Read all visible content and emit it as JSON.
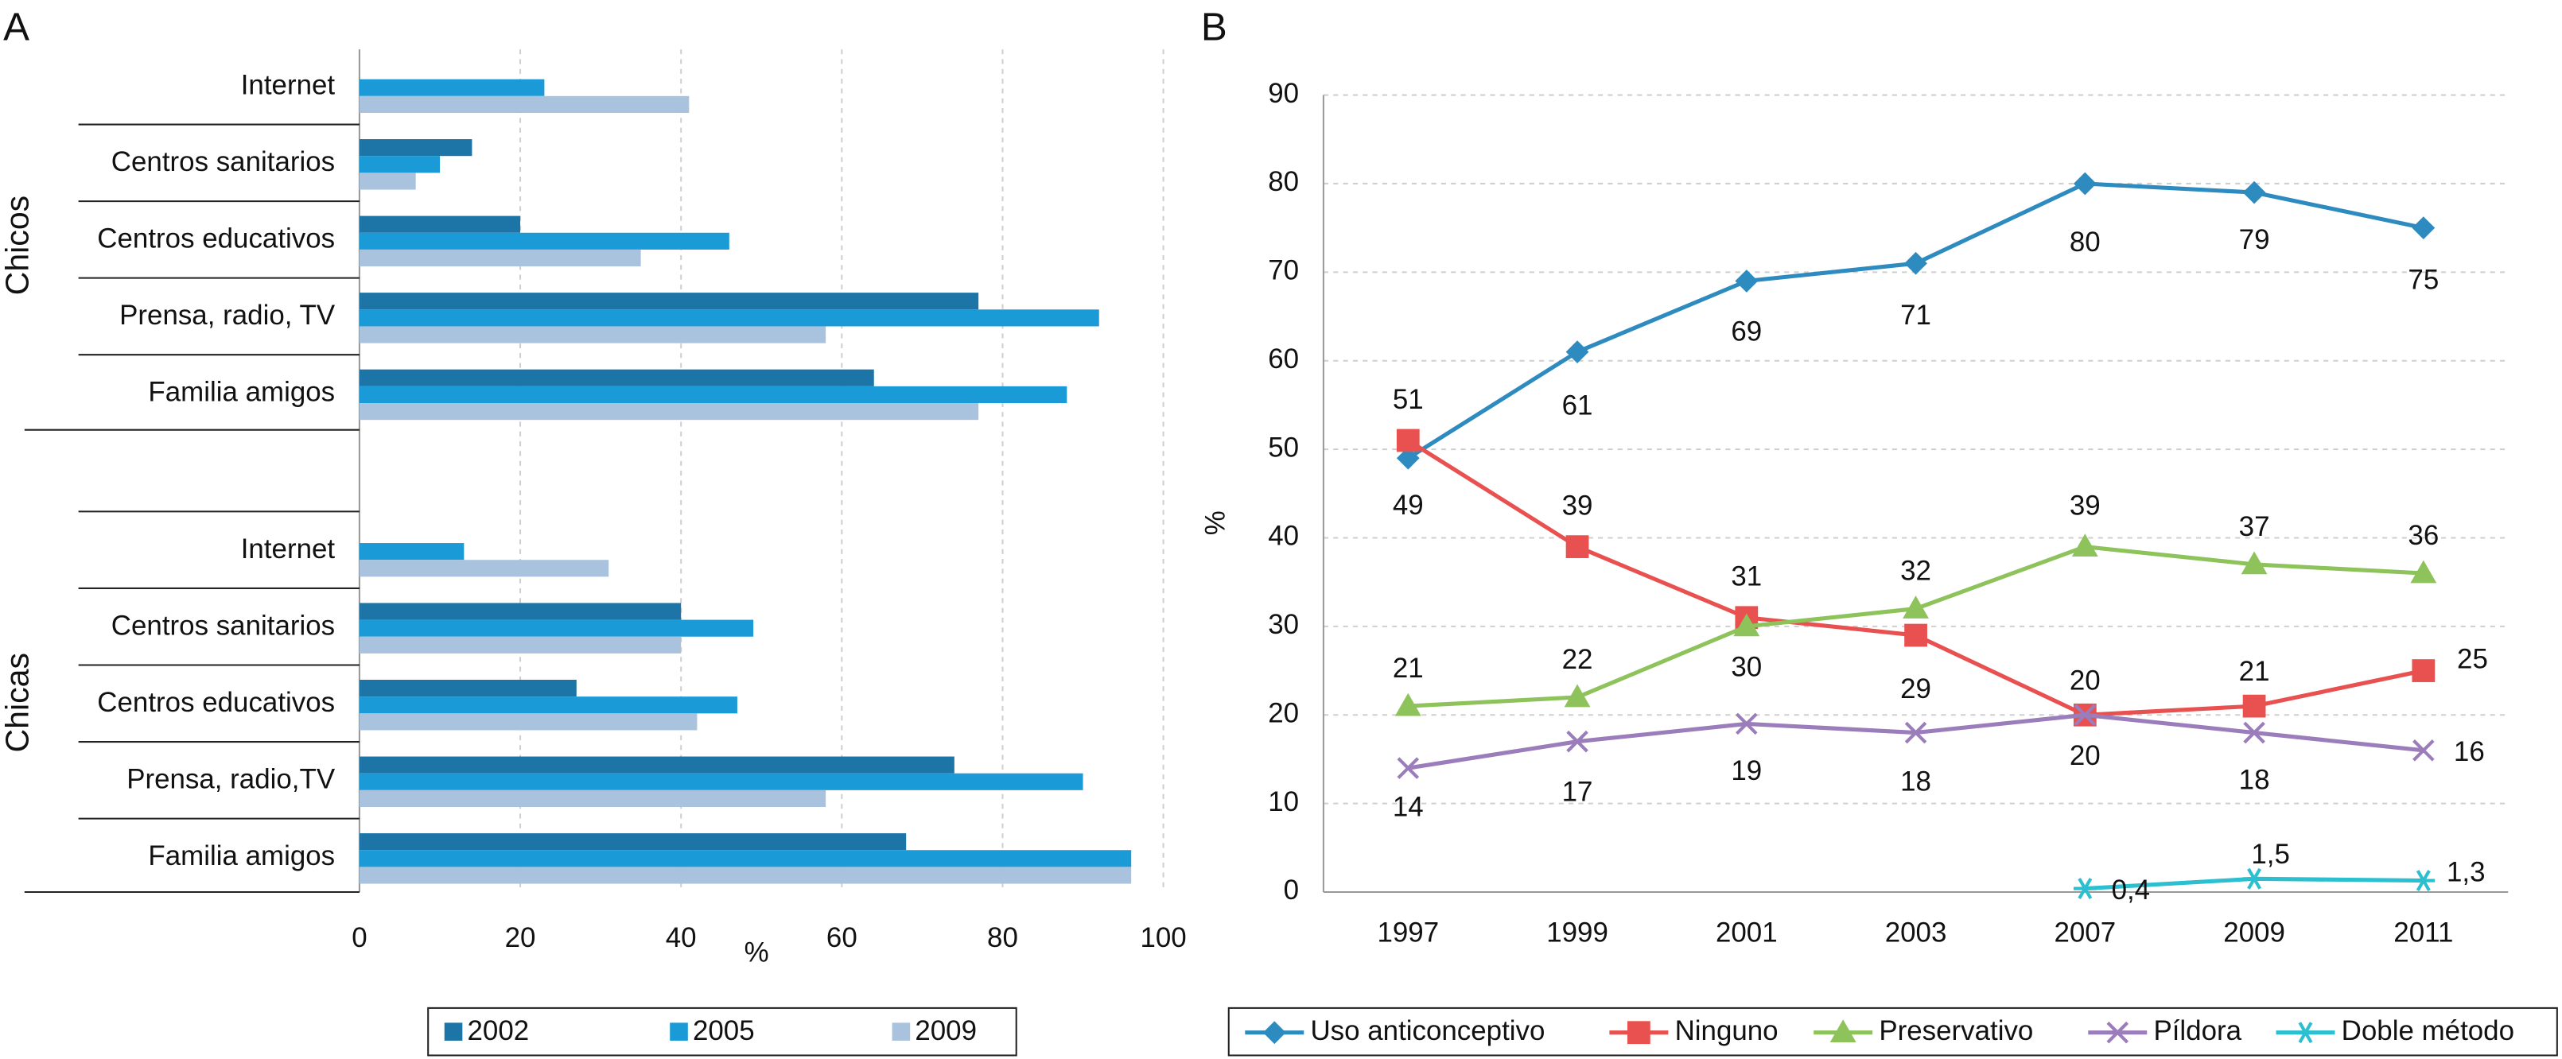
{
  "chart_data": [
    {
      "type": "hbar",
      "panel_label": "A",
      "categories": [
        "Internet",
        "Centros sanitarios",
        "Centros educativos",
        "Prensa, radio, TV",
        "Familia amigos",
        "Internet",
        "Centros sanitarios",
        "Centros educativos",
        "Prensa, radio,TV",
        "Familia amigos"
      ],
      "group_labels": [
        "Chicos",
        "Chicas"
      ],
      "series": [
        {
          "name": "2002",
          "color": "#1d74a6",
          "values": [
            null,
            14,
            20,
            77,
            64,
            null,
            40,
            27,
            74,
            68
          ]
        },
        {
          "name": "2005",
          "color": "#1a9ad6",
          "values": [
            23,
            10,
            46,
            92,
            88,
            13,
            49,
            47,
            90,
            96
          ]
        },
        {
          "name": "2009",
          "color": "#a9c3de",
          "values": [
            41,
            7,
            35,
            58,
            77,
            31,
            40,
            42,
            58,
            96
          ]
        }
      ],
      "xlim": [
        0,
        100
      ],
      "xticks": [
        0,
        20,
        40,
        60,
        80,
        100
      ],
      "xlabel": "%",
      "grid": true
    },
    {
      "type": "line",
      "panel_label": "B",
      "categories": [
        "1997",
        "1999",
        "2001",
        "2003",
        "2007",
        "2009",
        "2011"
      ],
      "ylabel": "%",
      "series": [
        {
          "name": "Uso anticonceptivo",
          "color": "#2e8bc0",
          "marker": "diamond",
          "values": [
            49,
            61,
            69,
            71,
            80,
            79,
            75
          ]
        },
        {
          "name": "Ninguno",
          "color": "#e8514f",
          "marker": "square",
          "values": [
            51,
            39,
            31,
            29,
            20,
            21,
            25
          ]
        },
        {
          "name": "Preservativo",
          "color": "#8dc35a",
          "marker": "triangle",
          "values": [
            21,
            22,
            30,
            32,
            39,
            37,
            36
          ]
        },
        {
          "name": "Píldora",
          "color": "#9a7dba",
          "marker": "x",
          "values": [
            14,
            17,
            19,
            18,
            20,
            18,
            16
          ]
        },
        {
          "name": "Doble método",
          "color": "#2bbfcf",
          "marker": "star",
          "values": [
            null,
            null,
            null,
            null,
            0.4,
            1.5,
            1.3
          ],
          "value_labels": [
            null,
            null,
            null,
            null,
            "0,4",
            "1,5",
            "1,3"
          ]
        }
      ],
      "ylim": [
        0,
        90
      ],
      "yticks": [
        0,
        10,
        20,
        30,
        40,
        50,
        60,
        70,
        80,
        90
      ],
      "grid": true
    }
  ]
}
